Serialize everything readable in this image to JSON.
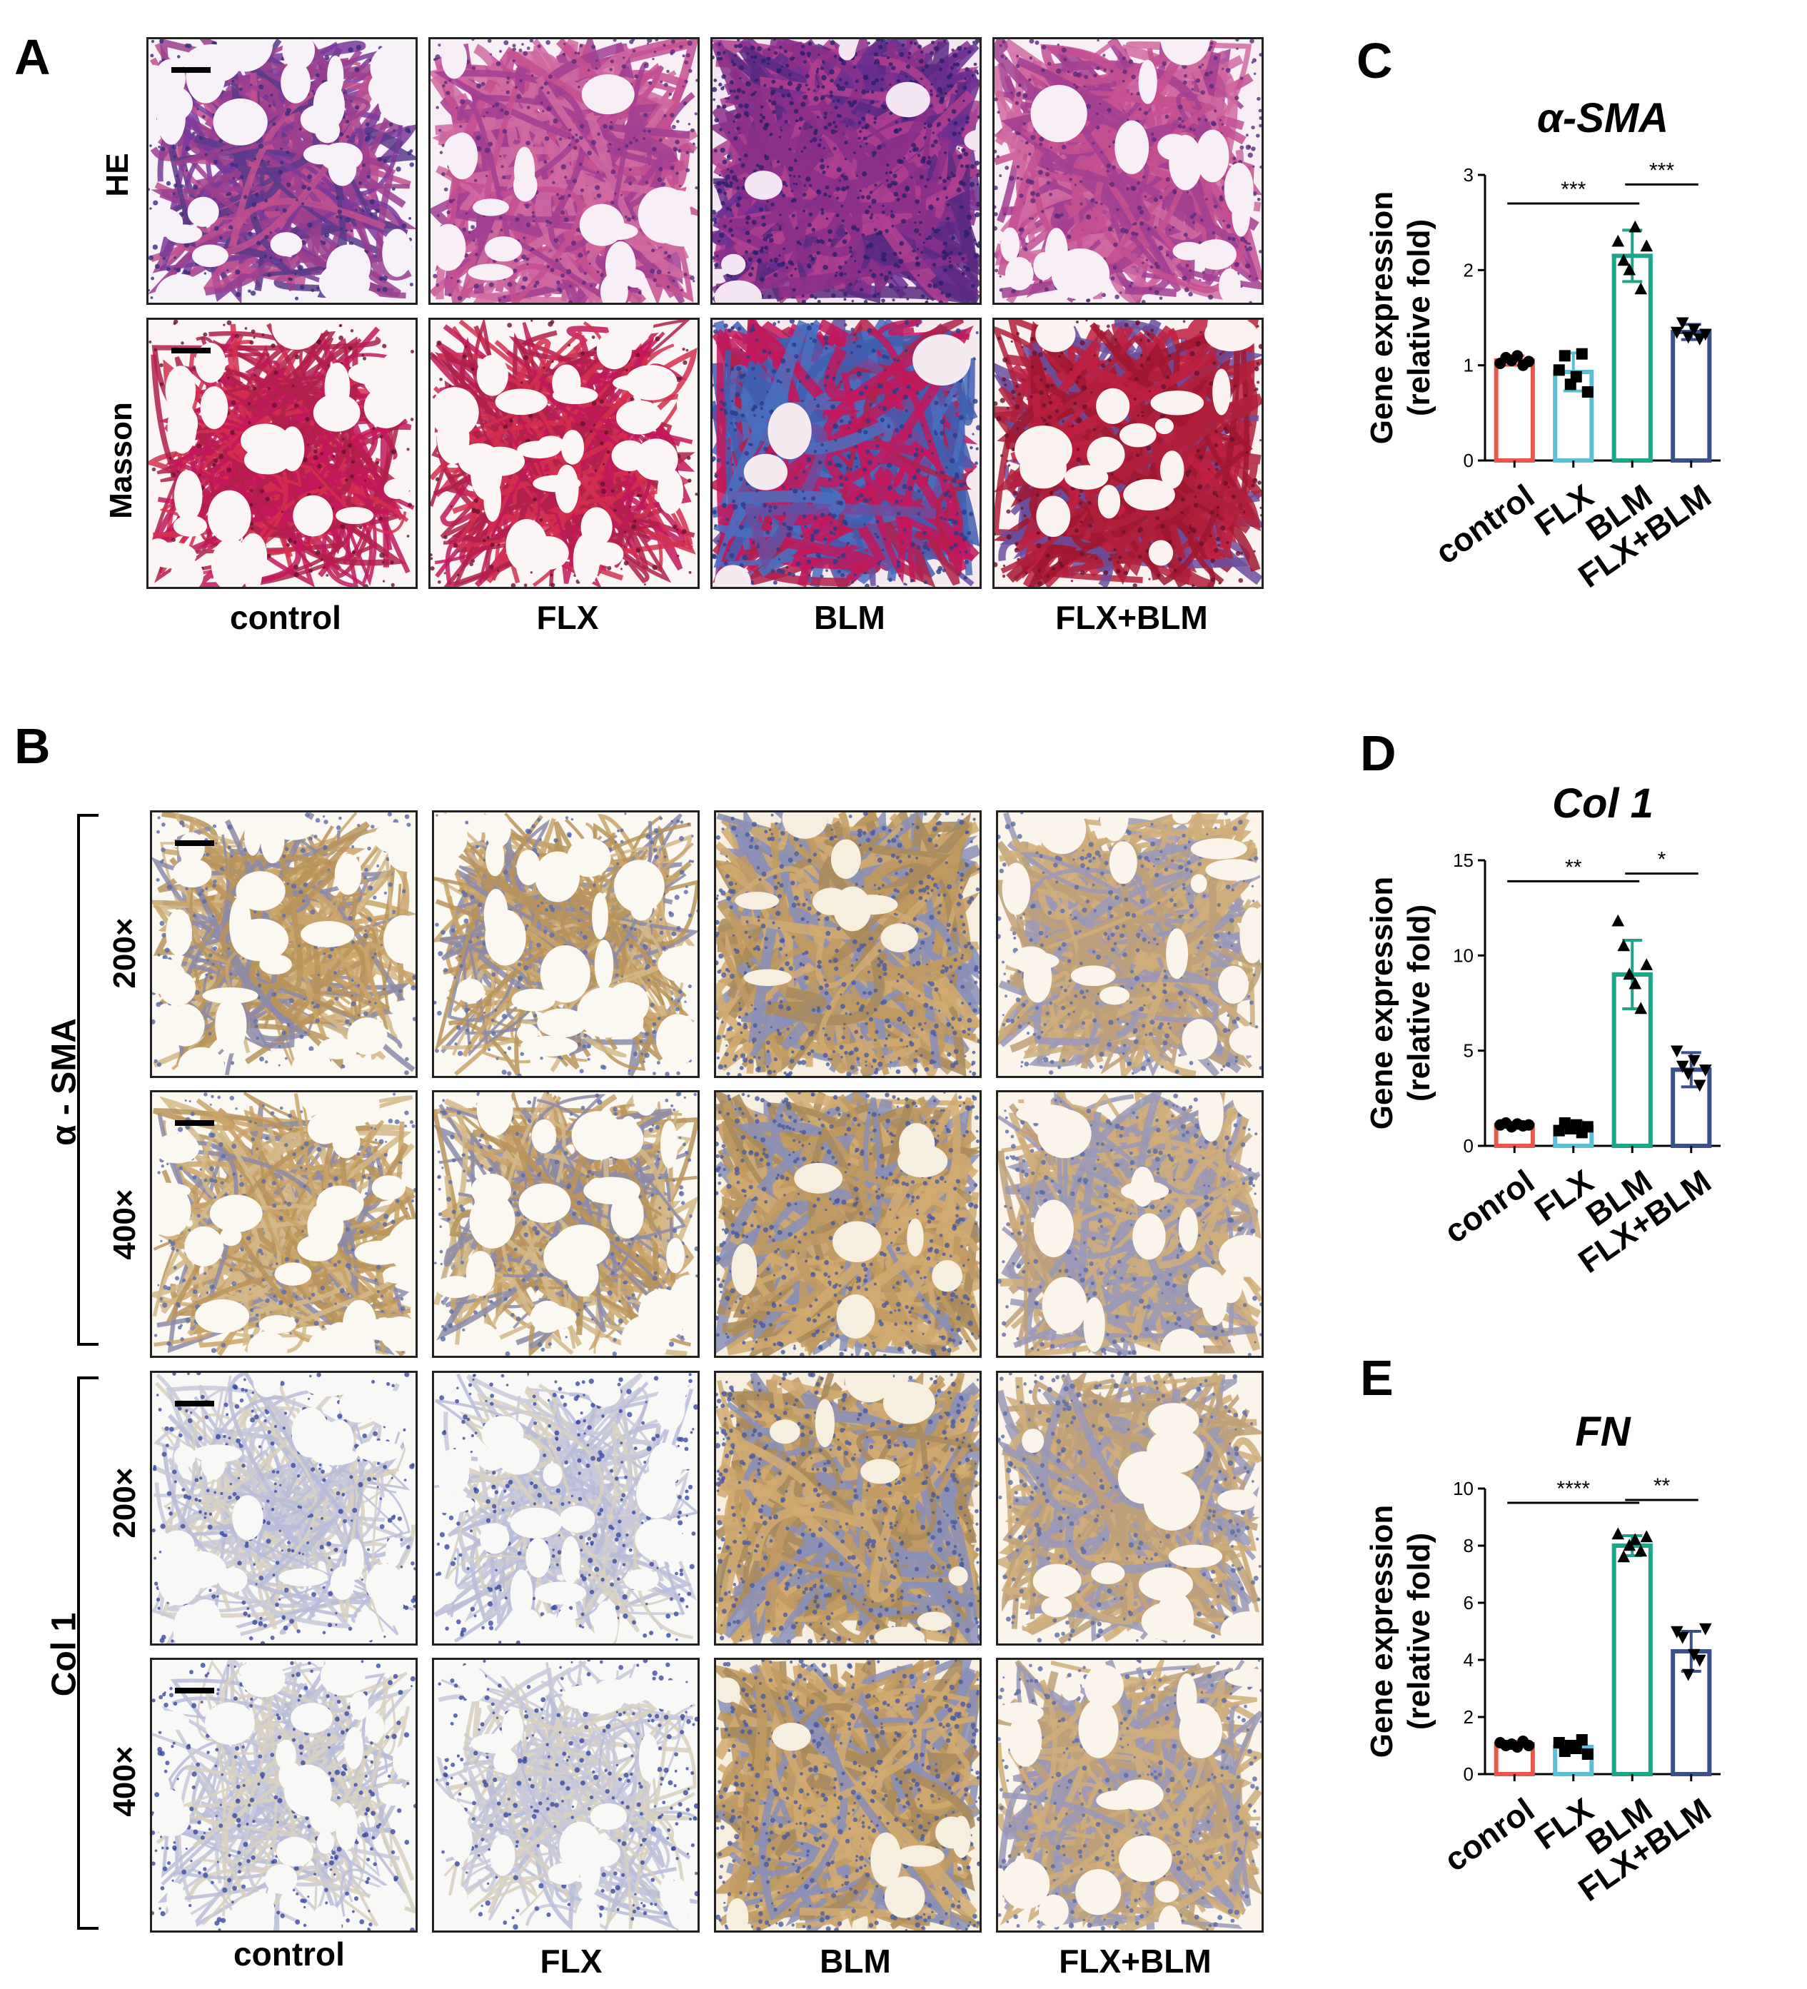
{
  "panels": {
    "A": {
      "letter": "A",
      "rows": [
        "HE",
        "Masson"
      ],
      "columns": [
        "control",
        "FLX",
        "BLM",
        "FLX+BLM"
      ]
    },
    "B": {
      "letter": "B",
      "groups": [
        {
          "name": "α - SMA",
          "rows": [
            "200×",
            "400×"
          ]
        },
        {
          "name": "Col 1",
          "rows": [
            "200×",
            "400×"
          ]
        }
      ],
      "columns": [
        "control",
        "FLX",
        "BLM",
        "FLX+BLM"
      ]
    },
    "C": {
      "letter": "C"
    },
    "D": {
      "letter": "D"
    },
    "E": {
      "letter": "E"
    }
  },
  "colors": {
    "control": "#e8584a",
    "FLX": "#5bc0d6",
    "BLM": "#1fa38a",
    "FLX+BLM": "#3b4f8a"
  },
  "chart_data": [
    {
      "id": "C",
      "type": "bar",
      "title": "α-SMA",
      "ylabel_line1": "Gene expression",
      "ylabel_line2": "(relative fold)",
      "categories": [
        "control",
        "FLX",
        "BLM",
        "FLX+BLM"
      ],
      "values": [
        1.05,
        0.93,
        2.15,
        1.35
      ],
      "errors": [
        0.05,
        0.2,
        0.27,
        0.08
      ],
      "points": [
        [
          1.02,
          1.08,
          1.05,
          1.1,
          1.0,
          1.04
        ],
        [
          0.95,
          1.1,
          0.8,
          0.88,
          1.12,
          0.72
        ],
        [
          2.3,
          2.1,
          2.0,
          2.45,
          1.8,
          2.25
        ],
        [
          1.35,
          1.45,
          1.3,
          1.38,
          1.28,
          1.33
        ]
      ],
      "markers": [
        "circle",
        "square",
        "triangle",
        "triangle-down"
      ],
      "ylim": [
        0,
        3
      ],
      "yticks": [
        0,
        1,
        2,
        3
      ],
      "significance": [
        {
          "from": 0,
          "to": 2,
          "y": 2.7,
          "label": "***"
        },
        {
          "from": 2,
          "to": 3,
          "y": 2.9,
          "label": "***"
        }
      ]
    },
    {
      "id": "D",
      "type": "bar",
      "title": "Col 1",
      "ylabel_line1": "Gene expression",
      "ylabel_line2": "(relative fold)",
      "categories": [
        "conrol",
        "FLX",
        "BLM",
        "FLX+BLM"
      ],
      "values": [
        1.1,
        1.0,
        9.0,
        4.0
      ],
      "errors": [
        0.1,
        0.3,
        1.8,
        0.9
      ],
      "points": [
        [
          1.1,
          1.2,
          1.0,
          1.15,
          1.05,
          1.1
        ],
        [
          0.8,
          1.2,
          0.9,
          1.1,
          0.7,
          1.0
        ],
        [
          11.8,
          10.5,
          9.0,
          8.5,
          7.2,
          9.5
        ],
        [
          5.0,
          4.2,
          3.8,
          4.5,
          3.2,
          4.0
        ]
      ],
      "markers": [
        "circle",
        "square",
        "triangle",
        "triangle-down"
      ],
      "ylim": [
        0,
        15
      ],
      "yticks": [
        0,
        5,
        10,
        15
      ],
      "significance": [
        {
          "from": 0,
          "to": 2,
          "y": 13.9,
          "label": "**"
        },
        {
          "from": 2,
          "to": 3,
          "y": 14.3,
          "label": "*"
        }
      ]
    },
    {
      "id": "E",
      "type": "bar",
      "title": "FN",
      "ylabel_line1": "Gene expression",
      "ylabel_line2": "(relative fold)",
      "categories": [
        "conrol",
        "FLX",
        "BLM",
        "FLX+BLM"
      ],
      "values": [
        1.05,
        0.95,
        8.0,
        4.3
      ],
      "errors": [
        0.1,
        0.2,
        0.35,
        0.7
      ],
      "points": [
        [
          1.1,
          1.0,
          1.05,
          0.95,
          1.15,
          1.0
        ],
        [
          1.1,
          0.8,
          1.0,
          0.9,
          1.2,
          0.7
        ],
        [
          8.4,
          7.6,
          8.0,
          8.2,
          7.8,
          8.3
        ],
        [
          5.0,
          4.8,
          3.5,
          4.2,
          4.0,
          5.1
        ]
      ],
      "markers": [
        "circle",
        "square",
        "triangle",
        "triangle-down"
      ],
      "ylim": [
        0,
        10
      ],
      "yticks": [
        0,
        2,
        4,
        6,
        8,
        10
      ],
      "significance": [
        {
          "from": 0,
          "to": 2,
          "y": 9.5,
          "label": "****"
        },
        {
          "from": 2,
          "to": 3,
          "y": 9.6,
          "label": "**"
        }
      ]
    }
  ]
}
